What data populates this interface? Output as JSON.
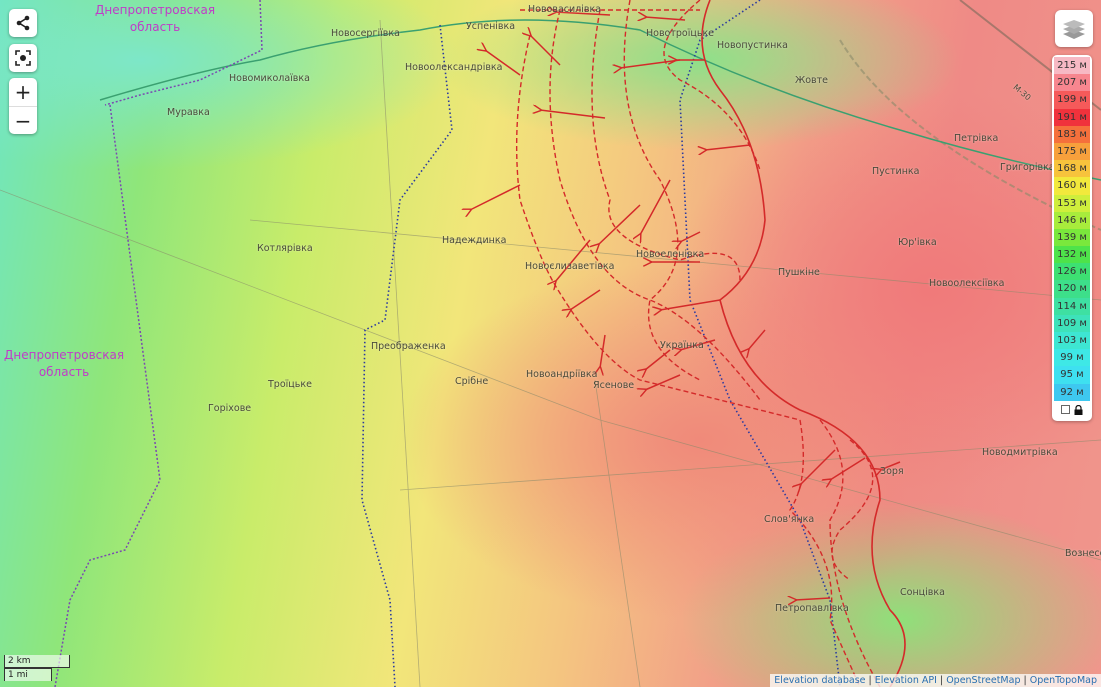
{
  "controls": {
    "share_icon": "share-icon",
    "locate_icon": "locate-icon",
    "zoom_in": "+",
    "zoom_out": "−",
    "layers_icon": "layers-icon"
  },
  "regions": [
    {
      "line1": "Днепропетровская",
      "line2": "область"
    },
    {
      "line1": "Днепропетровская",
      "line2": "область"
    }
  ],
  "places": [
    "Новосергіївка",
    "Успенівка",
    "Новоолександрівка",
    "Новомиколаївка",
    "Муравка",
    "Нововасилівка",
    "Новотроїцьке",
    "Новопустинка",
    "Жовте",
    "Петрівка",
    "Пустинка",
    "Григорівка",
    "Юр'івка",
    "Пушкіне",
    "Новоолексіївка",
    "Надеждинка",
    "Новоєлизаветівка",
    "Новоеленівка",
    "Котлярівка",
    "Преображенка",
    "Українка",
    "Новоандріївка",
    "Ясенове",
    "Срібне",
    "Троїцьке",
    "Горіхове",
    "Новодмитрівка",
    "Зоря",
    "Слов'янка",
    "Сонцівка",
    "Вознесенка",
    "Петропавлівка",
    "М-30"
  ],
  "legend": {
    "unit": "м",
    "values": [
      "215 м",
      "207 м",
      "199 м",
      "191 м",
      "183 м",
      "175 м",
      "168 м",
      "160 м",
      "153 м",
      "146 м",
      "139 м",
      "132 м",
      "126 м",
      "120 м",
      "114 м",
      "109 м",
      "103 м",
      "99 м",
      "95 м",
      "92 м"
    ],
    "colors": [
      "#f7b9c4",
      "#f7868f",
      "#f55a5a",
      "#f0323c",
      "#f5703c",
      "#f7a03c",
      "#f7c33c",
      "#f2e93c",
      "#cfee3c",
      "#a8ec3c",
      "#7ae83c",
      "#4ee34a",
      "#3de072",
      "#3ddf8a",
      "#3ee0a2",
      "#3ee2ba",
      "#3ee6d2",
      "#3ee8e6",
      "#3ee0f0",
      "#3ec8f0"
    ],
    "lock_icon": "lock-icon"
  },
  "scale": {
    "metric": "2 km",
    "imperial": "1 mi"
  },
  "attribution": [
    "Elevation database",
    "Elevation API",
    "OpenStreetMap",
    "OpenTopoMap"
  ],
  "colors": {
    "front_line": "#d42a2a",
    "border": "#7a4ab0",
    "boundary_dots": "#2a3aa0"
  }
}
